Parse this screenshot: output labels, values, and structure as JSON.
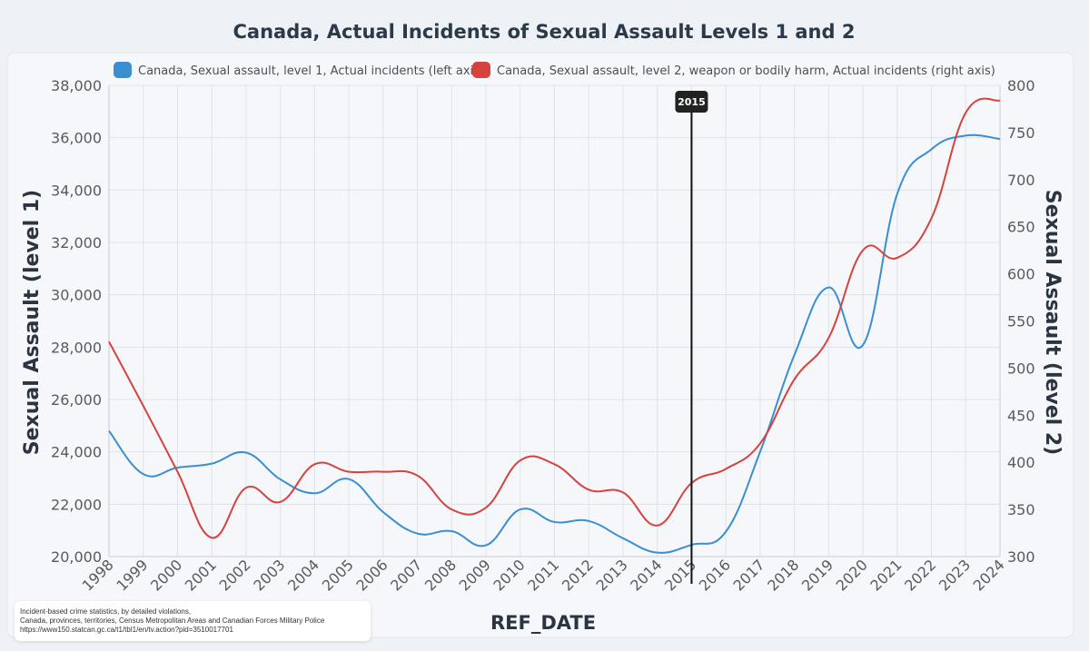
{
  "chart_data": {
    "type": "line",
    "title": "Canada, Actual Incidents of Sexual Assault Levels 1 and 2",
    "xlabel": "REF_DATE",
    "ylabel_left": "Sexual Assault (level 1)",
    "ylabel_right": "Sexual Assault (level 2)",
    "x": [
      "1998",
      "1999",
      "2000",
      "2001",
      "2002",
      "2003",
      "2004",
      "2005",
      "2006",
      "2007",
      "2008",
      "2009",
      "2010",
      "2011",
      "2012",
      "2013",
      "2014",
      "2015",
      "2016",
      "2017",
      "2018",
      "2019",
      "2020",
      "2021",
      "2022",
      "2023",
      "2024"
    ],
    "ylim_left": [
      20000,
      38000
    ],
    "yticks_left": [
      20000,
      22000,
      24000,
      26000,
      28000,
      30000,
      32000,
      34000,
      36000,
      38000
    ],
    "ytick_labels_left": [
      "20,000",
      "22,000",
      "24,000",
      "26,000",
      "28,000",
      "30,000",
      "32,000",
      "34,000",
      "36,000",
      "38,000"
    ],
    "ylim_right": [
      300,
      800
    ],
    "yticks_right": [
      300,
      350,
      400,
      450,
      500,
      550,
      600,
      650,
      700,
      750,
      800
    ],
    "ytick_labels_right": [
      "300",
      "350",
      "400",
      "450",
      "500",
      "550",
      "600",
      "650",
      "700",
      "750",
      "800"
    ],
    "series": [
      {
        "name": "Canada, Sexual assault, level 1, Actual incidents (left axis)",
        "axis": "left",
        "color": "#3a8fd0",
        "values": [
          24800,
          23150,
          23400,
          23550,
          23970,
          22950,
          22420,
          22960,
          21700,
          20880,
          20970,
          20430,
          21800,
          21320,
          21360,
          20700,
          20150,
          20450,
          20950,
          24000,
          27700,
          30280,
          28080,
          33850,
          35560,
          36080,
          35950
        ]
      },
      {
        "name": "Canada, Sexual assault, level 2, weapon or bodily harm, Actual incidents (right axis)",
        "axis": "right",
        "color": "#d6423e",
        "values": [
          528,
          460,
          390,
          320,
          373,
          358,
          398,
          390,
          390,
          386,
          350,
          352,
          402,
          398,
          371,
          368,
          333,
          378,
          393,
          420,
          488,
          532,
          625,
          617,
          659,
          771,
          784
        ]
      }
    ],
    "marker": {
      "x": "2015",
      "label": "2015"
    },
    "grid": true,
    "legend": "top"
  },
  "source": {
    "line1": "Incident-based crime statistics, by detailed violations,",
    "line2": "Canada, provinces, territories, Census Metropolitan Areas and Canadian Forces Military Police",
    "line3": "https://www150.statcan.gc.ca/t1/tbl1/en/tv.action?pid=3510017701"
  }
}
